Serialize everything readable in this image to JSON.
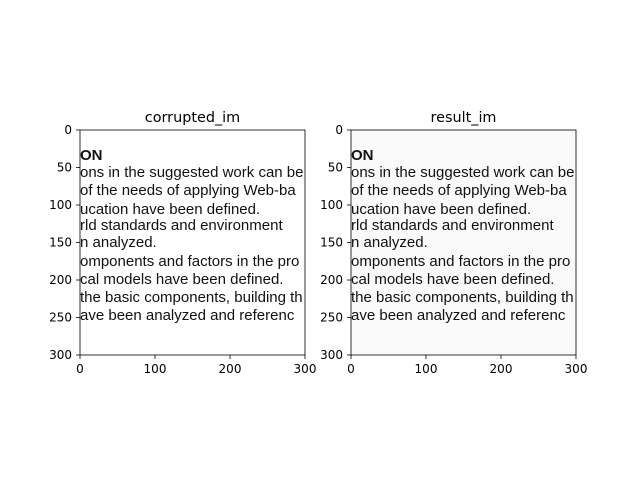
{
  "figure": {
    "panels": [
      {
        "title": "corrupted_im",
        "background": "#ffffff",
        "xticks": [
          "0",
          "100",
          "200",
          "300"
        ],
        "yticks": [
          "0",
          "50",
          "100",
          "150",
          "200",
          "250",
          "300"
        ]
      },
      {
        "title": "result_im",
        "background": "#fafafa",
        "xticks": [
          "0",
          "100",
          "200",
          "300"
        ],
        "yticks": [
          "0",
          "50",
          "100",
          "150",
          "200",
          "250",
          "300"
        ]
      }
    ],
    "document_lines": [
      "ON",
      "ons in the suggested work can be",
      "of the needs of applying Web-ba",
      "ucation have been defined.",
      "rld  standards  and  environment",
      "n analyzed.",
      "omponents and factors in the pro",
      "cal models have been defined.",
      "the basic components, building th",
      "ave been analyzed and referenc"
    ]
  }
}
